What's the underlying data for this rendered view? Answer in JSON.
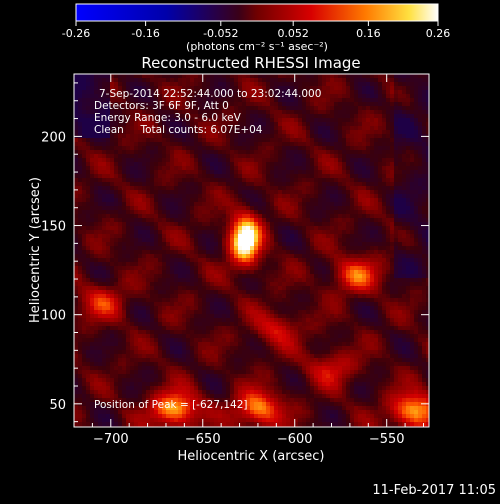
{
  "chart_data": {
    "type": "heatmap",
    "title": "Reconstructed RHESSI Image",
    "xlabel": "Heliocentric X (arcsec)",
    "ylabel": "Heliocentric Y (arcsec)",
    "xticks": [
      -700,
      -650,
      -600,
      -550
    ],
    "yticks": [
      50,
      100,
      150,
      200
    ],
    "xlim": [
      -720,
      -527
    ],
    "ylim": [
      37,
      235
    ],
    "colorbar": {
      "ticks": [
        "-0.26",
        "-0.16",
        "-0.052",
        "0.052",
        "0.16",
        "0.26"
      ],
      "range": [
        -0.26,
        0.26
      ],
      "units_label": "(photons cm⁻² s⁻¹ asec⁻²)"
    },
    "info": [
      "7-Sep-2014 22:52:44.000 to 23:02:44.000",
      "Detectors: 3F 6F 9F, Att 0",
      "Energy Range: 3.0 - 6.0 keV",
      "Clean     Total counts: 6.07E+04"
    ],
    "peak_label": "Position of Peak = [-627,142]",
    "peak": {
      "x": -627,
      "y": 142,
      "value": 0.26
    },
    "sources": [
      {
        "x": -627,
        "y": 142,
        "peak": 0.26
      },
      {
        "x": -665,
        "y": 47,
        "peak": 0.19
      },
      {
        "x": -620,
        "y": 47,
        "peak": 0.17
      },
      {
        "x": -535,
        "y": 46,
        "peak": 0.19
      },
      {
        "x": -567,
        "y": 122,
        "peak": 0.13
      },
      {
        "x": -705,
        "y": 107,
        "peak": 0.1
      },
      {
        "x": -610,
        "y": 92,
        "peak": 0.09
      },
      {
        "x": -580,
        "y": 70,
        "peak": 0.09
      }
    ]
  },
  "footer": {
    "timestamp": "11-Feb-2017 11:05"
  },
  "colors": {
    "background": "#000000",
    "axes": "#ffffff",
    "text": "#ffffff"
  }
}
